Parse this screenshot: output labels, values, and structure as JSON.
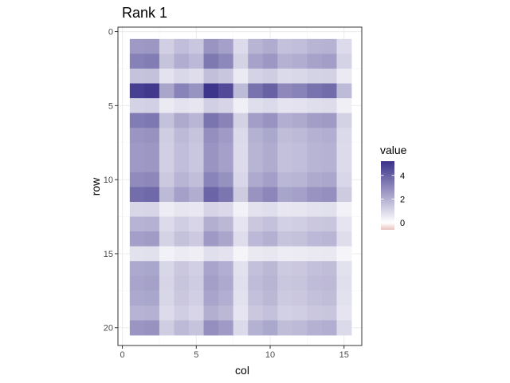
{
  "chart_data": {
    "type": "heatmap",
    "title": "Rank 1",
    "xlabel": "col",
    "ylabel": "row",
    "xlim": [
      -0.3,
      16.2
    ],
    "ylim": [
      -0.3,
      21.2
    ],
    "y_reversed": true,
    "x_ticks": [
      0,
      5,
      10,
      15
    ],
    "y_ticks": [
      0,
      5,
      10,
      15,
      20
    ],
    "grid": true,
    "legend_placement": "right",
    "rows": [
      1,
      2,
      3,
      4,
      5,
      6,
      7,
      8,
      9,
      10,
      11,
      12,
      13,
      14,
      15,
      16,
      17,
      18,
      19,
      20
    ],
    "cols": [
      1,
      2,
      3,
      4,
      5,
      6,
      7,
      8,
      9,
      10,
      11,
      12,
      13,
      14,
      15
    ],
    "row_factor": [
      1.0,
      1.25,
      0.6,
      1.9,
      0.45,
      1.3,
      1.05,
      1.0,
      1.0,
      1.15,
      1.45,
      0.4,
      0.75,
      0.95,
      0.3,
      0.85,
      0.9,
      0.85,
      0.75,
      1.05
    ],
    "col_factor": [
      1.7,
      1.75,
      0.8,
      1.1,
      0.95,
      1.8,
      1.6,
      0.6,
      1.25,
      1.4,
      1.05,
      1.1,
      1.25,
      1.3,
      0.6
    ],
    "value_scale": 1.5,
    "legend": {
      "title": "value",
      "min": -0.6,
      "max": 5.2,
      "breaks": [
        0,
        2,
        4
      ],
      "color_low": "#e7c2bf",
      "color_mid": "#ffffff",
      "color_high": "#3a3189",
      "midpoint": 0
    },
    "colors": {
      "panel_border": "#333333",
      "grid_major": "#ebebeb",
      "grid_minor": "#f5f5f5"
    }
  }
}
